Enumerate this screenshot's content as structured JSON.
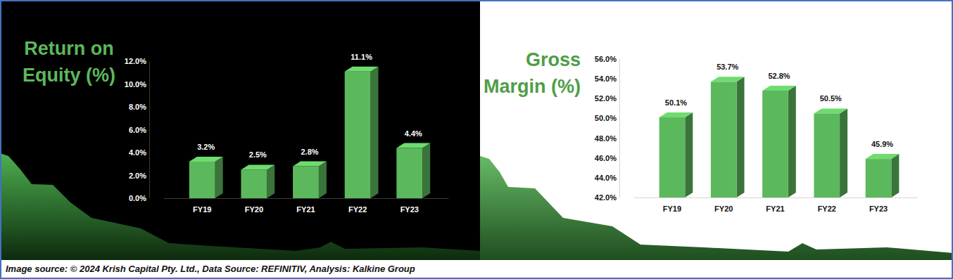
{
  "chart_data": [
    {
      "type": "bar",
      "title": "Return on Equity (%)",
      "categories": [
        "FY19",
        "FY20",
        "FY21",
        "FY22",
        "FY23"
      ],
      "values": [
        3.2,
        2.5,
        2.8,
        11.1,
        4.4
      ],
      "value_labels": [
        "3.2%",
        "2.5%",
        "2.8%",
        "11.1%",
        "4.4%"
      ],
      "color": "#5cb85c",
      "ylim": [
        0,
        12
      ],
      "yticks": [
        {
          "value": 0,
          "label": "0.0%"
        },
        {
          "value": 2,
          "label": "2.0%"
        },
        {
          "value": 4,
          "label": "4.0%"
        },
        {
          "value": 6,
          "label": "6.0%"
        },
        {
          "value": 8,
          "label": "8.0%"
        },
        {
          "value": 10,
          "label": "10.0%"
        },
        {
          "value": 12,
          "label": "12.0%"
        }
      ],
      "grid": false,
      "data_labels": true
    },
    {
      "type": "bar",
      "title": "Gross Margin (%)",
      "categories": [
        "FY19",
        "FY20",
        "FY21",
        "FY22",
        "FY23"
      ],
      "values": [
        50.1,
        53.7,
        52.8,
        50.5,
        45.9
      ],
      "value_labels": [
        "50.1%",
        "53.7%",
        "52.8%",
        "50.5%",
        "45.9%"
      ],
      "color": "#5cb85c",
      "ylim": [
        42,
        56
      ],
      "yticks": [
        {
          "value": 42,
          "label": "42.0%"
        },
        {
          "value": 44,
          "label": "44.0%"
        },
        {
          "value": 46,
          "label": "46.0%"
        },
        {
          "value": 48,
          "label": "48.0%"
        },
        {
          "value": 50,
          "label": "50.0%"
        },
        {
          "value": 52,
          "label": "52.0%"
        },
        {
          "value": 54,
          "label": "54.0%"
        },
        {
          "value": 56,
          "label": "56.0%"
        }
      ],
      "grid": false,
      "data_labels": true
    }
  ],
  "footnote": "Image source: © 2024 Krish Capital Pty. Ltd., Data Source: REFINITIV, Analysis: Kalkine Group"
}
